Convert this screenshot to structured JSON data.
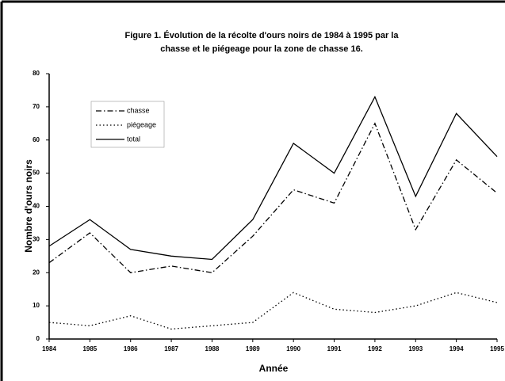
{
  "chart_data": {
    "type": "line",
    "title": [
      "Figure 1. Évolution de la récolte d'ours noirs de 1984 à 1995 par la",
      "chasse et le piégeage pour la zone de chasse 16."
    ],
    "xlabel": "Année",
    "ylabel": "Nombre d'ours noirs",
    "x": [
      1984,
      1985,
      1986,
      1987,
      1988,
      1989,
      1990,
      1991,
      1992,
      1993,
      1994,
      1995
    ],
    "series": [
      {
        "name": "chasse",
        "color": "#000000",
        "style": "dashdot",
        "values": [
          23,
          32,
          20,
          22,
          20,
          31,
          45,
          41,
          65,
          33,
          54,
          44
        ]
      },
      {
        "name": "piégeage",
        "color": "#000000",
        "style": "dotted",
        "values": [
          5,
          4,
          7,
          3,
          4,
          5,
          14,
          9,
          8,
          10,
          14,
          11
        ]
      },
      {
        "name": "total",
        "color": "#000000",
        "style": "solid",
        "values": [
          28,
          36,
          27,
          25,
          24,
          36,
          59,
          50,
          73,
          43,
          68,
          55
        ]
      }
    ],
    "xlim": [
      1984,
      1995
    ],
    "xticks": [
      1984,
      1985,
      1986,
      1987,
      1988,
      1989,
      1990,
      1991,
      1992,
      1993,
      1994,
      1995
    ],
    "ylim": [
      0,
      80
    ],
    "yticks": [
      0,
      10,
      20,
      30,
      40,
      50,
      60,
      70,
      80
    ],
    "grid": false,
    "legend": "upper left"
  }
}
